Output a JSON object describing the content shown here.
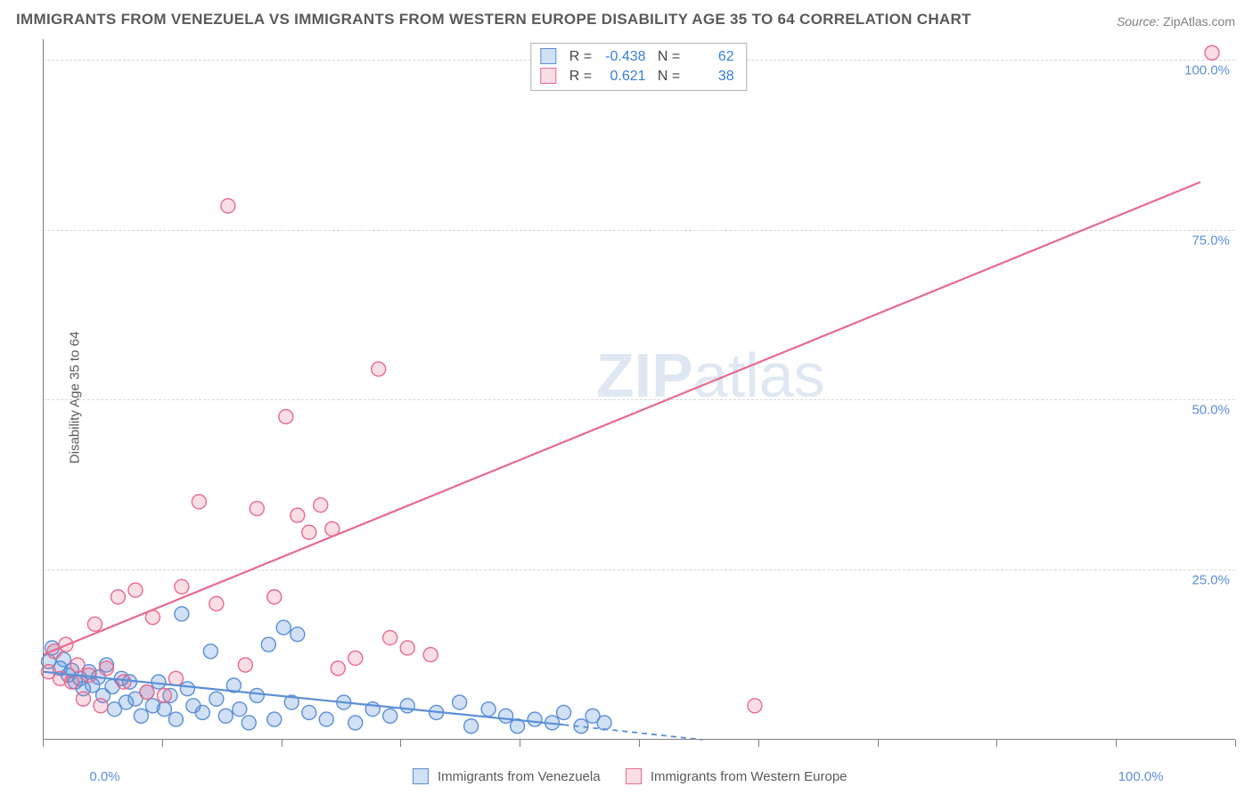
{
  "title": "IMMIGRANTS FROM VENEZUELA VS IMMIGRANTS FROM WESTERN EUROPE DISABILITY AGE 35 TO 64 CORRELATION CHART",
  "source_label": "Source:",
  "source_value": "ZipAtlas.com",
  "y_axis_label": "Disability Age 35 to 64",
  "watermark_bold": "ZIP",
  "watermark_rest": "atlas",
  "chart": {
    "type": "scatter",
    "xlim": [
      0,
      103
    ],
    "ylim": [
      0,
      103
    ],
    "x_ticks_pct": [
      0,
      10,
      20,
      30,
      40,
      50,
      60,
      70,
      80,
      90,
      100
    ],
    "x_tick_labels": {
      "left": "0.0%",
      "right": "100.0%"
    },
    "y_gridlines": [
      25,
      50,
      75,
      100
    ],
    "y_tick_labels": [
      "25.0%",
      "50.0%",
      "75.0%",
      "100.0%"
    ],
    "grid_color": "#d8d8d8",
    "axis_color": "#808080",
    "background_color": "#ffffff",
    "label_color": "#5b8fd6",
    "marker_radius": 8,
    "marker_stroke_width": 1.4,
    "series": [
      {
        "id": "venezuela",
        "label": "Immigrants from Venezuela",
        "color_stroke": "#5b8fd6",
        "color_fill": "rgba(91,143,214,0.28)",
        "R": "-0.438",
        "N": "62",
        "trend": {
          "solid": {
            "x1": 0,
            "y1": 10.0,
            "x2": 45,
            "y2": 2.2
          },
          "dashed": {
            "x1": 45,
            "y1": 2.2,
            "x2": 57,
            "y2": 0
          }
        },
        "points": [
          [
            0.5,
            11.5
          ],
          [
            0.8,
            13.5
          ],
          [
            1.5,
            10.5
          ],
          [
            1.8,
            11.8
          ],
          [
            2.2,
            9.5
          ],
          [
            2.5,
            10.2
          ],
          [
            2.8,
            8.5
          ],
          [
            3.2,
            9.0
          ],
          [
            3.5,
            7.5
          ],
          [
            4.0,
            10.0
          ],
          [
            4.3,
            8.0
          ],
          [
            4.8,
            9.2
          ],
          [
            5.2,
            6.5
          ],
          [
            5.5,
            11.0
          ],
          [
            6.0,
            7.8
          ],
          [
            6.2,
            4.5
          ],
          [
            6.8,
            9.0
          ],
          [
            7.2,
            5.5
          ],
          [
            7.5,
            8.5
          ],
          [
            8.0,
            6.0
          ],
          [
            8.5,
            3.5
          ],
          [
            9.0,
            7.0
          ],
          [
            9.5,
            5.0
          ],
          [
            10.0,
            8.5
          ],
          [
            10.5,
            4.5
          ],
          [
            11.0,
            6.5
          ],
          [
            11.5,
            3.0
          ],
          [
            12.0,
            18.5
          ],
          [
            12.5,
            7.5
          ],
          [
            13.0,
            5.0
          ],
          [
            13.8,
            4.0
          ],
          [
            14.5,
            13.0
          ],
          [
            15.0,
            6.0
          ],
          [
            15.8,
            3.5
          ],
          [
            16.5,
            8.0
          ],
          [
            17.0,
            4.5
          ],
          [
            17.8,
            2.5
          ],
          [
            18.5,
            6.5
          ],
          [
            19.5,
            14.0
          ],
          [
            20.0,
            3.0
          ],
          [
            20.8,
            16.5
          ],
          [
            21.5,
            5.5
          ],
          [
            22.0,
            15.5
          ],
          [
            23.0,
            4.0
          ],
          [
            24.5,
            3.0
          ],
          [
            26.0,
            5.5
          ],
          [
            27.0,
            2.5
          ],
          [
            28.5,
            4.5
          ],
          [
            30.0,
            3.5
          ],
          [
            31.5,
            5.0
          ],
          [
            34.0,
            4.0
          ],
          [
            36.0,
            5.5
          ],
          [
            37.0,
            2.0
          ],
          [
            38.5,
            4.5
          ],
          [
            40.0,
            3.5
          ],
          [
            41.0,
            2.0
          ],
          [
            42.5,
            3.0
          ],
          [
            44.0,
            2.5
          ],
          [
            45.0,
            4.0
          ],
          [
            46.5,
            2.0
          ],
          [
            47.5,
            3.5
          ],
          [
            48.5,
            2.5
          ]
        ]
      },
      {
        "id": "western_europe",
        "label": "Immigrants from Western Europe",
        "color_stroke": "#e86a8f",
        "color_fill": "rgba(232,106,143,0.22)",
        "R": "0.621",
        "N": "38",
        "trend": {
          "solid": {
            "x1": 0,
            "y1": 12.5,
            "x2": 100,
            "y2": 82
          }
        },
        "points": [
          [
            0.5,
            10.0
          ],
          [
            1.0,
            13.0
          ],
          [
            1.5,
            9.0
          ],
          [
            2.0,
            14.0
          ],
          [
            2.5,
            8.5
          ],
          [
            3.0,
            11.0
          ],
          [
            4.0,
            9.5
          ],
          [
            4.5,
            17.0
          ],
          [
            5.5,
            10.5
          ],
          [
            6.5,
            21.0
          ],
          [
            8.0,
            22.0
          ],
          [
            9.5,
            18.0
          ],
          [
            11.5,
            9.0
          ],
          [
            12.0,
            22.5
          ],
          [
            13.5,
            35.0
          ],
          [
            15.0,
            20.0
          ],
          [
            16.0,
            78.5
          ],
          [
            17.5,
            11.0
          ],
          [
            18.5,
            34.0
          ],
          [
            20.0,
            21.0
          ],
          [
            21.0,
            47.5
          ],
          [
            22.0,
            33.0
          ],
          [
            23.0,
            30.5
          ],
          [
            24.0,
            34.5
          ],
          [
            25.0,
            31.0
          ],
          [
            25.5,
            10.5
          ],
          [
            27.0,
            12.0
          ],
          [
            29.0,
            54.5
          ],
          [
            30.0,
            15.0
          ],
          [
            31.5,
            13.5
          ],
          [
            33.5,
            12.5
          ],
          [
            61.5,
            5.0
          ],
          [
            101.0,
            101.0
          ],
          [
            3.5,
            6.0
          ],
          [
            5.0,
            5.0
          ],
          [
            7.0,
            8.5
          ],
          [
            9.0,
            7.0
          ],
          [
            10.5,
            6.5
          ]
        ]
      }
    ]
  },
  "top_legend": {
    "r_label": "R =",
    "n_label": "N ="
  }
}
